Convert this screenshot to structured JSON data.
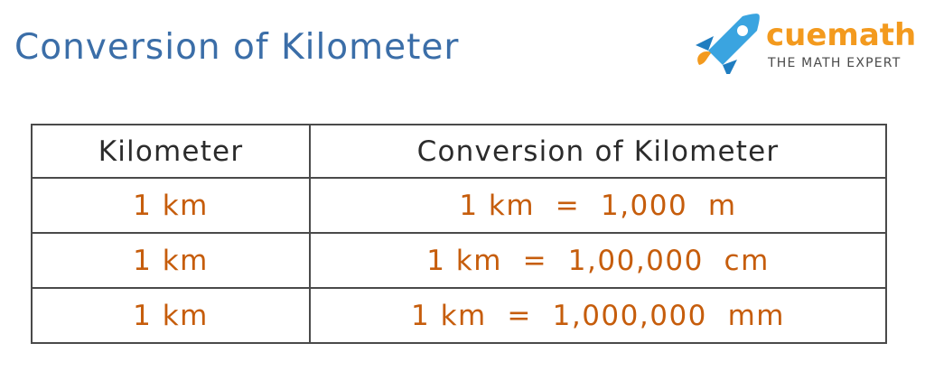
{
  "title": "Conversion of Kilometer",
  "logo": {
    "brand_part1": "cue",
    "brand_part2": "math",
    "tagline": "THE MATH EXPERT",
    "icon": "rocket-icon"
  },
  "colors": {
    "title": "#3b6ea8",
    "accent": "#f39a1e",
    "cell_text": "#c65d0c",
    "header_text": "#2b2b2b",
    "border": "#4a4a4a"
  },
  "table": {
    "headers": [
      "Kilometer",
      "Conversion of Kilometer"
    ],
    "rows": [
      [
        "1 km",
        "1 km  =  1,000  m"
      ],
      [
        "1 km",
        "1 km  =  1,00,000  cm"
      ],
      [
        "1 km",
        "1 km  =  1,000,000  mm"
      ]
    ]
  }
}
